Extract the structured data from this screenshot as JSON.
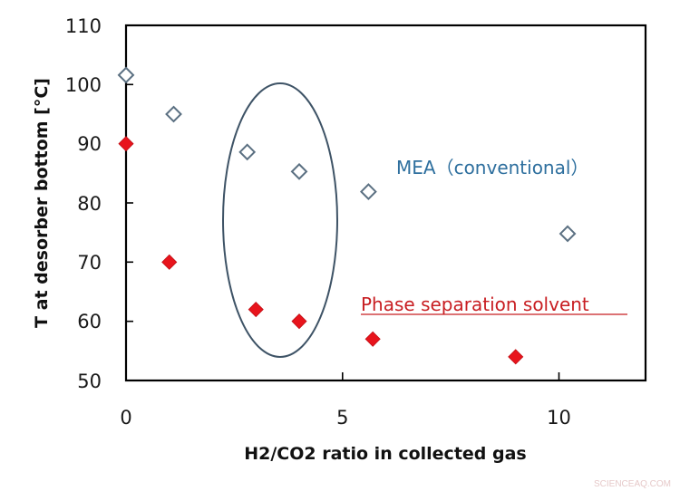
{
  "chart_data": {
    "type": "scatter",
    "title": "",
    "xlabel": "H2/CO2 ratio in collected gas",
    "ylabel": "T at desorber bottom [°C]",
    "xlim": [
      0,
      12
    ],
    "ylim": [
      50,
      110
    ],
    "x_ticks": [
      0,
      5,
      10
    ],
    "y_ticks": [
      50,
      60,
      70,
      80,
      90,
      100,
      110
    ],
    "grid": false,
    "legend": "none (inline annotations)",
    "series": [
      {
        "name": "MEA（conventional）",
        "marker": "hollow-diamond",
        "color": "#5b7082",
        "x": [
          0.0,
          1.1,
          2.8,
          4.0,
          5.6,
          10.2
        ],
        "y": [
          101.6,
          95.0,
          88.6,
          85.3,
          81.9,
          74.8
        ]
      },
      {
        "name": "Phase separation solvent",
        "marker": "filled-diamond",
        "color": "#e8141c",
        "x": [
          0.0,
          1.0,
          3.0,
          4.0,
          5.7,
          9.0
        ],
        "y": [
          90.0,
          70.0,
          62.0,
          60.0,
          57.0,
          54.0
        ]
      }
    ],
    "annotations": [
      {
        "text": "MEA（conventional）",
        "color": "#2e6f9e",
        "position": "upper right"
      },
      {
        "text": "Phase separation solvent",
        "color": "#c81e22",
        "underline": true,
        "position": "lower right"
      },
      {
        "shape": "ellipse",
        "description": "highlights points at H2/CO2 ratio ~3-4",
        "center_x": 3.6,
        "center_y": 77,
        "color": "#3e5366"
      }
    ]
  },
  "labels": {
    "xlabel": "H2/CO2 ratio in collected gas",
    "ylabel": "T at desorber bottom [°C]",
    "mea": "MEA（conventional）",
    "phase": "Phase separation solvent",
    "watermark": "SCIENCEAQ.COM"
  },
  "ticks": {
    "x": [
      "0",
      "5",
      "10"
    ],
    "y": [
      "50",
      "60",
      "70",
      "80",
      "90",
      "100",
      "110"
    ]
  }
}
